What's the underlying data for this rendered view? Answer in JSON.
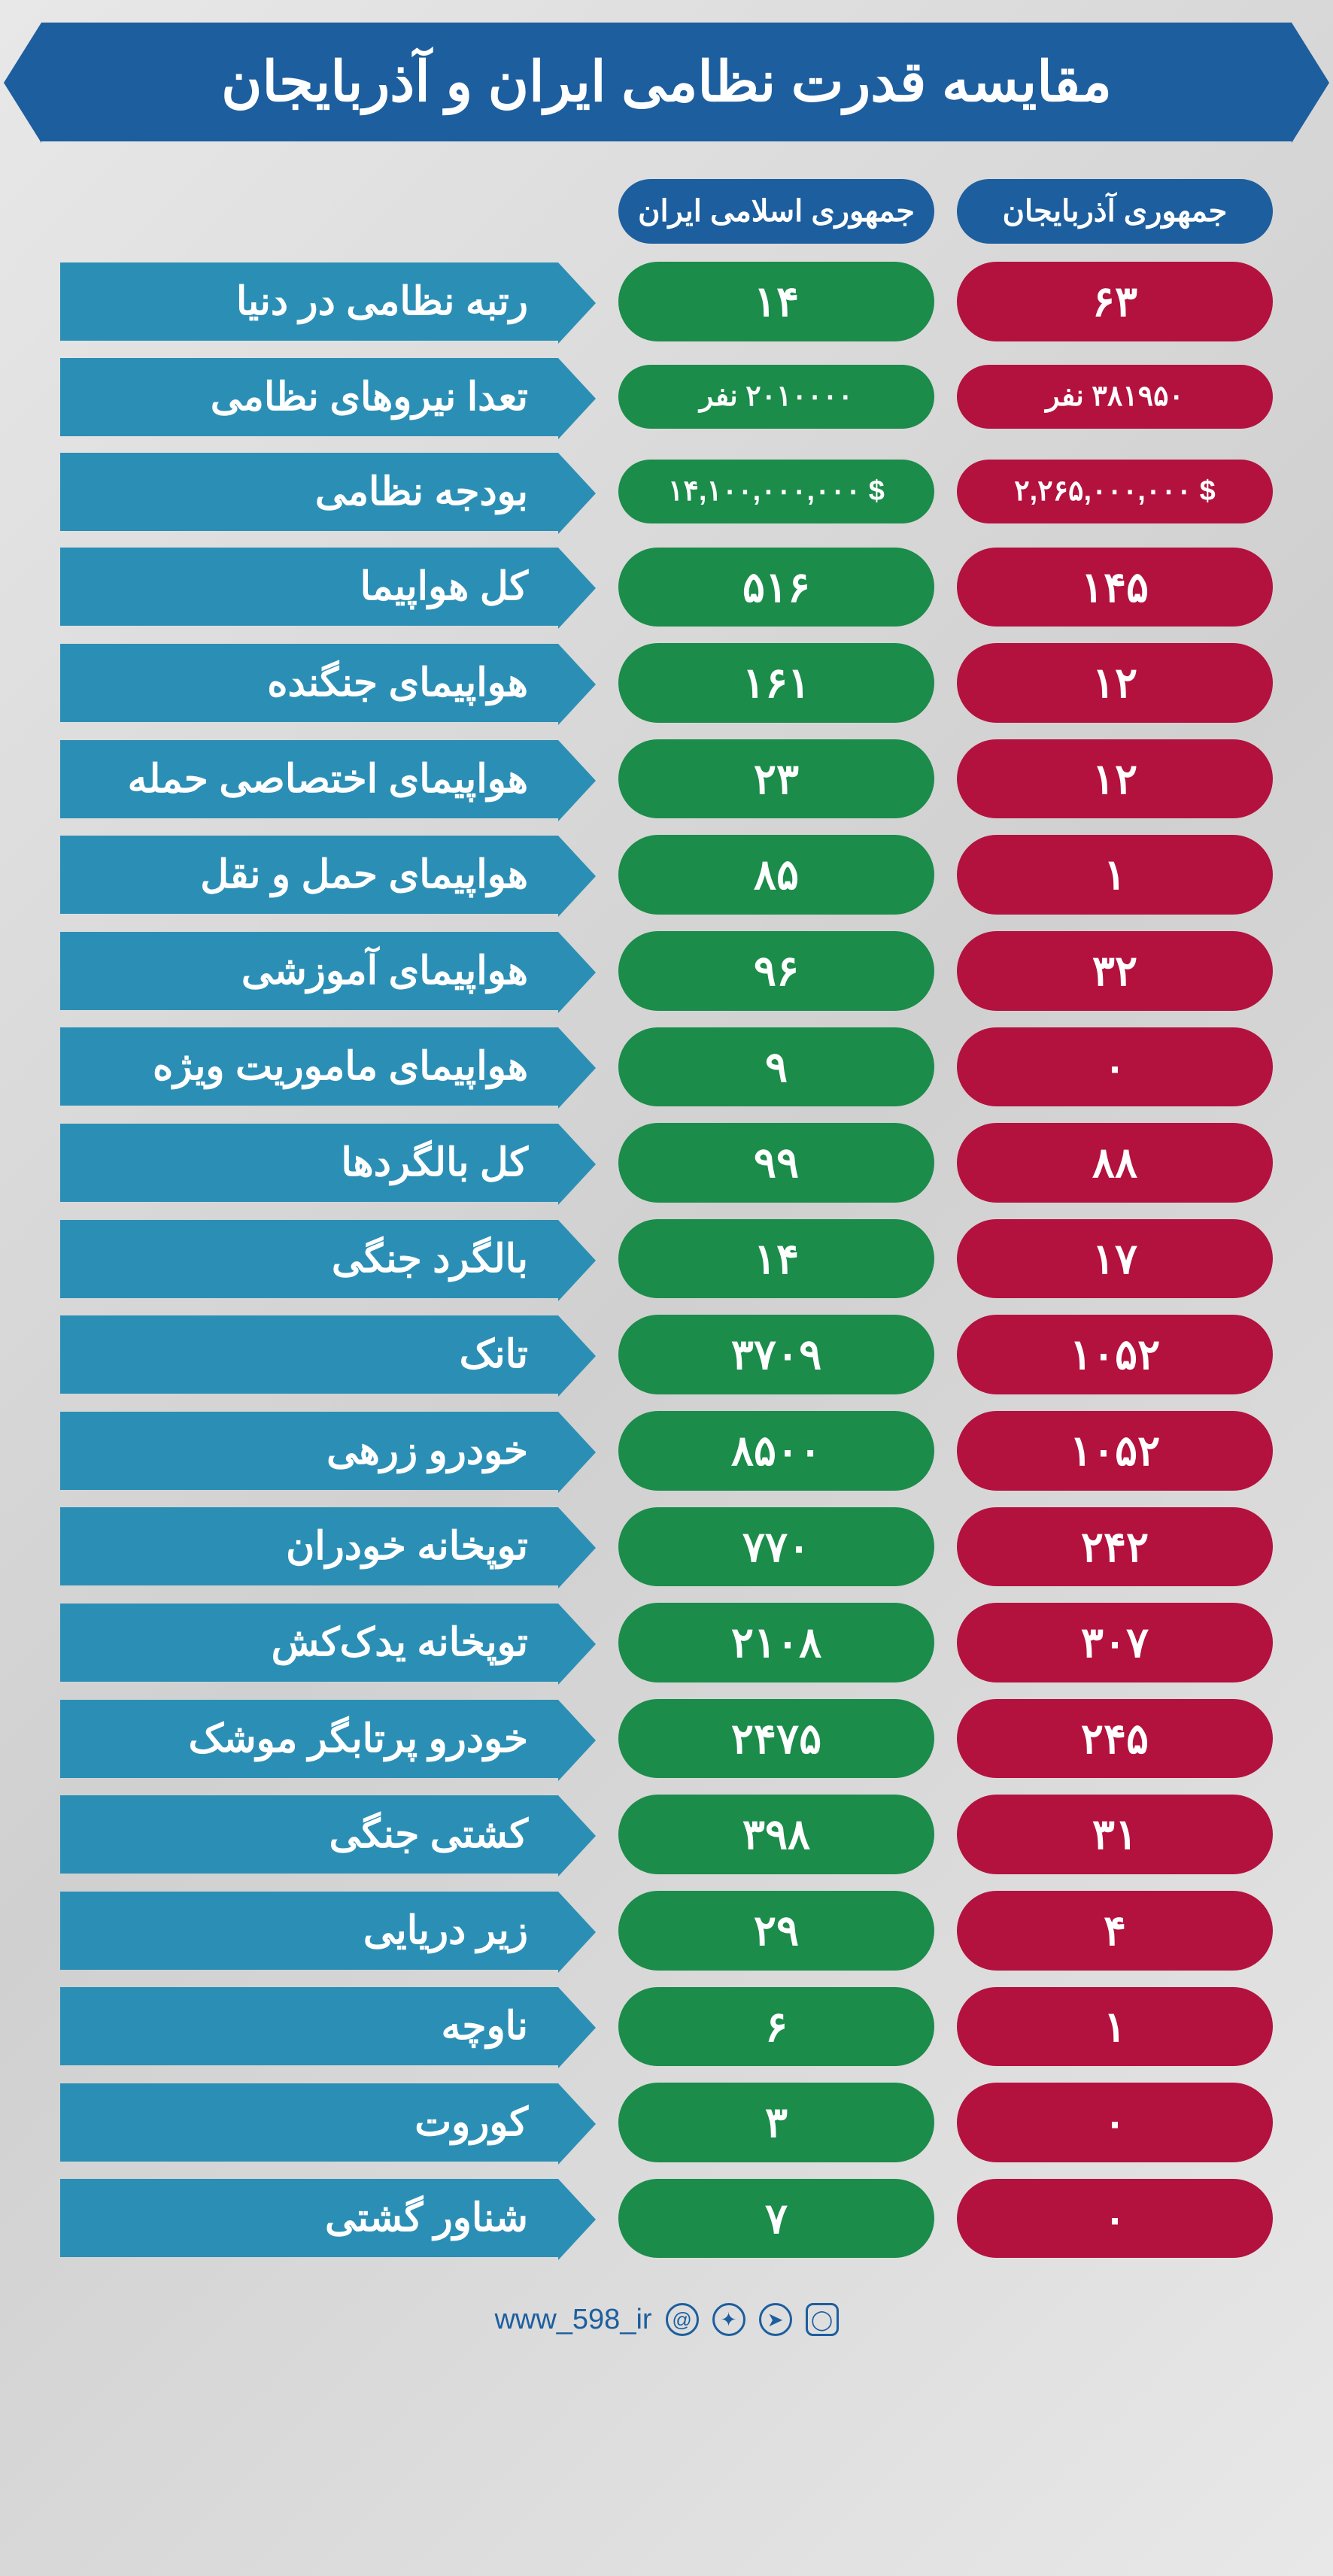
{
  "title": "مقایسه قدرت نظامی ایران و آذربایجان",
  "headers": {
    "azerbaijan": "جمهوری آذربایجان",
    "iran": "جمهوری اسلامی ایران"
  },
  "colors": {
    "banner": "#1d5e9e",
    "label": "#2b8fb5",
    "iran": "#1b8c4a",
    "azerbaijan": "#b3123e",
    "background_from": "#e8e8e8",
    "background_to": "#d0d0d0"
  },
  "rows": [
    {
      "label": "رتبه نظامی در دنیا",
      "iran": "۱۴",
      "az": "۶۳",
      "small": false
    },
    {
      "label": "تعدا نیروهای نظامی",
      "iran": "۲۰۱۰۰۰۰ نفر",
      "az": "۳۸۱۹۵۰ نفر",
      "small": true
    },
    {
      "label": "بودجه نظامی",
      "iran": "$ ۱۴,۱۰۰,۰۰۰,۰۰۰",
      "az": "$ ۲,۲۶۵,۰۰۰,۰۰۰",
      "small": true
    },
    {
      "label": "کل هواپیما",
      "iran": "۵۱۶",
      "az": "۱۴۵",
      "small": false
    },
    {
      "label": "هواپیمای جنگنده",
      "iran": "۱۶۱",
      "az": "۱۲",
      "small": false
    },
    {
      "label": "هواپیمای اختصاصی حمله",
      "iran": "۲۳",
      "az": "۱۲",
      "small": false
    },
    {
      "label": "هواپیمای حمل و نقل",
      "iran": "۸۵",
      "az": "۱",
      "small": false
    },
    {
      "label": "هواپیمای آموزشی",
      "iran": "۹۶",
      "az": "۳۲",
      "small": false
    },
    {
      "label": "هواپیمای ماموریت ویژه",
      "iran": "۹",
      "az": "۰",
      "small": false
    },
    {
      "label": "کل بالگردها",
      "iran": "۹۹",
      "az": "۸۸",
      "small": false
    },
    {
      "label": "بالگرد جنگی",
      "iran": "۱۴",
      "az": "۱۷",
      "small": false
    },
    {
      "label": "تانک",
      "iran": "۳۷۰۹",
      "az": "۱۰۵۲",
      "small": false
    },
    {
      "label": "خودرو زرهی",
      "iran": "۸۵۰۰",
      "az": "۱۰۵۲",
      "small": false
    },
    {
      "label": "توپخانه خودران",
      "iran": "۷۷۰",
      "az": "۲۴۲",
      "small": false
    },
    {
      "label": "توپخانه یدک‌کش",
      "iran": "۲۱۰۸",
      "az": "۳۰۷",
      "small": false
    },
    {
      "label": "خودرو پرتابگر موشک",
      "iran": "۲۴۷۵",
      "az": "۲۴۵",
      "small": false
    },
    {
      "label": "کشتی جنگی",
      "iran": "۳۹۸",
      "az": "۳۱",
      "small": false
    },
    {
      "label": "زیر دریایی",
      "iran": "۲۹",
      "az": "۴",
      "small": false
    },
    {
      "label": "ناوچه",
      "iran": "۶",
      "az": "۱",
      "small": false
    },
    {
      "label": "کوروت",
      "iran": "۳",
      "az": "۰",
      "small": false
    },
    {
      "label": "شناور گشتی",
      "iran": "۷",
      "az": "۰",
      "small": false
    }
  ],
  "footer": {
    "handle": "www_598_ir",
    "icons": [
      "instagram",
      "telegram",
      "twitter",
      "eitaa"
    ]
  }
}
